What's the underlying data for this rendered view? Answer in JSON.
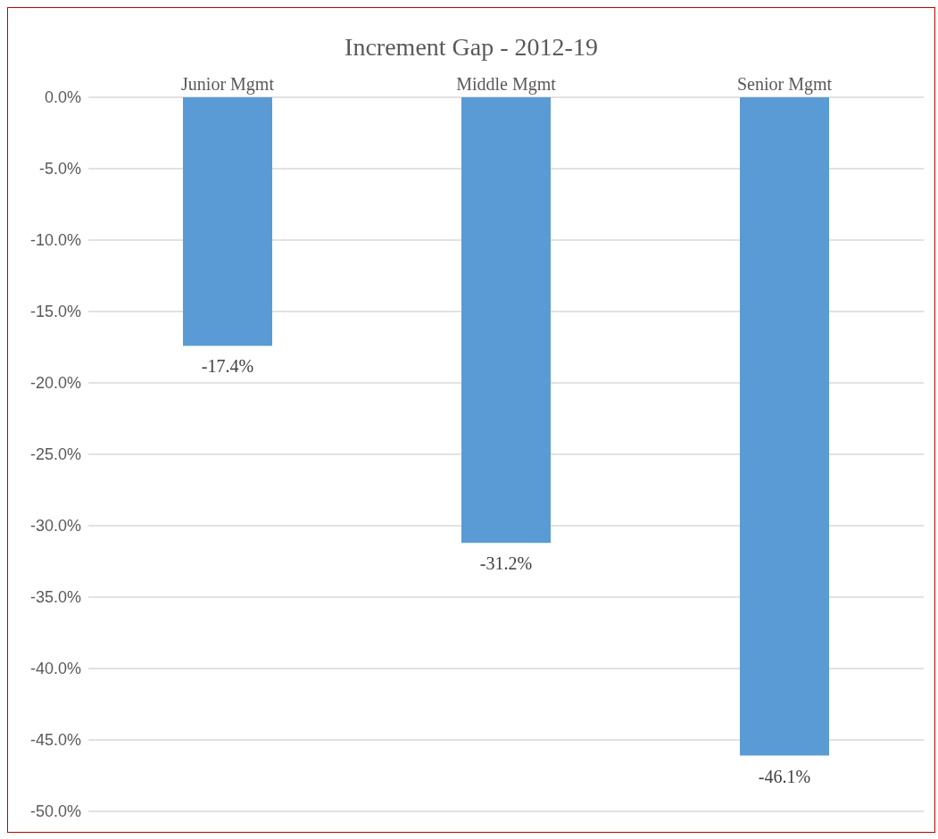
{
  "chart_data": {
    "type": "bar",
    "title": "Increment Gap - 2012-19",
    "categories": [
      "Junior Mgmt",
      "Middle Mgmt",
      "Senior Mgmt"
    ],
    "values": [
      -17.4,
      -31.2,
      -46.1
    ],
    "value_labels": [
      "-17.4%",
      "-31.2%",
      "-46.1%"
    ],
    "color": "#5b9bd5",
    "ylim": [
      -50,
      0
    ],
    "yticks": [
      {
        "value": 0,
        "label": "0.0%"
      },
      {
        "value": -5,
        "label": "-5.0%"
      },
      {
        "value": -10,
        "label": "-10.0%"
      },
      {
        "value": -15,
        "label": "-15.0%"
      },
      {
        "value": -20,
        "label": "-20.0%"
      },
      {
        "value": -25,
        "label": "-25.0%"
      },
      {
        "value": -30,
        "label": "-30.0%"
      },
      {
        "value": -35,
        "label": "-35.0%"
      },
      {
        "value": -40,
        "label": "-40.0%"
      },
      {
        "value": -45,
        "label": "-45.0%"
      },
      {
        "value": -50,
        "label": "-50.0%"
      }
    ],
    "grid": "y"
  }
}
